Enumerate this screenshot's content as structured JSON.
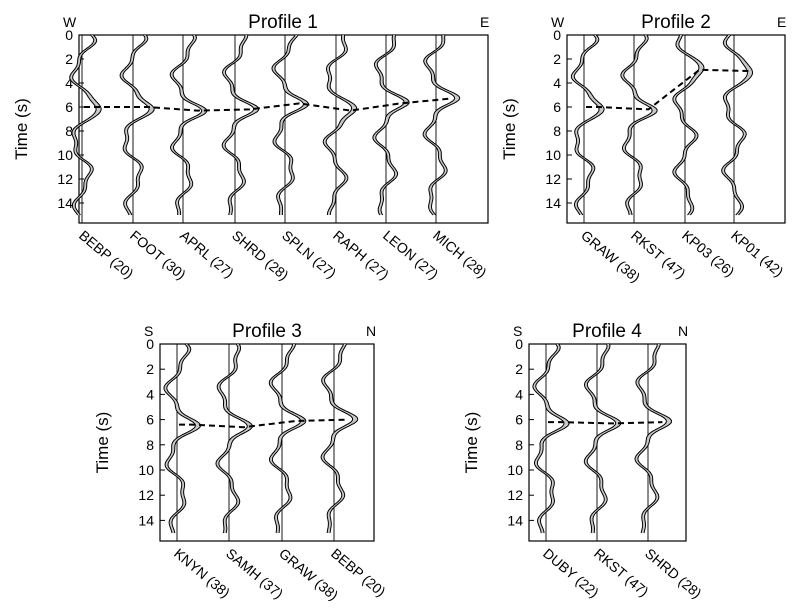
{
  "chart_data": [
    {
      "type": "line",
      "title": "Profile 1",
      "left_label": "W",
      "right_label": "E",
      "ylabel": "Time (s)",
      "ylim": [
        0,
        15
      ],
      "yticks": [
        "0",
        "2",
        "4",
        "6",
        "8",
        "10",
        "12",
        "14"
      ],
      "stations": [
        "BEBP (20)",
        "FOOT (30)",
        "APRL (27)",
        "SHRD (28)",
        "SPLN (27)",
        "RAPH (27)",
        "LEON (27)",
        "MICH (28)"
      ],
      "arrival_times": [
        6.0,
        6.0,
        6.3,
        6.2,
        5.7,
        6.3,
        5.7,
        5.3
      ],
      "trace_style": "filled positive peaks, shaded grey",
      "fill_color": "#c8c8c8",
      "dashed_line_color": "#000000"
    },
    {
      "type": "line",
      "title": "Profile 2",
      "left_label": "W",
      "right_label": "E",
      "ylabel": "Time (s)",
      "ylim": [
        0,
        15
      ],
      "yticks": [
        "0",
        "2",
        "4",
        "6",
        "8",
        "10",
        "12",
        "14"
      ],
      "stations": [
        "GRAW (38)",
        "RKST (47)",
        "KP03 (26)",
        "KP01 (42)"
      ],
      "arrival_times": [
        6.0,
        6.2,
        2.9,
        3.0
      ],
      "trace_style": "filled positive peaks, shaded grey",
      "fill_color": "#c8c8c8",
      "dashed_line_color": "#000000"
    },
    {
      "type": "line",
      "title": "Profile 3",
      "left_label": "S",
      "right_label": "N",
      "ylabel": "Time (s)",
      "ylim": [
        0,
        15
      ],
      "yticks": [
        "0",
        "2",
        "4",
        "6",
        "8",
        "10",
        "12",
        "14"
      ],
      "stations": [
        "KNYN (38)",
        "SAMH (37)",
        "GRAW (38)",
        "BEBP (20)"
      ],
      "arrival_times": [
        6.4,
        6.6,
        6.1,
        6.0
      ],
      "trace_style": "filled positive peaks, shaded grey",
      "fill_color": "#c8c8c8",
      "dashed_line_color": "#000000"
    },
    {
      "type": "line",
      "title": "Profile 4",
      "left_label": "S",
      "right_label": "N",
      "ylabel": "Time (s)",
      "ylim": [
        0,
        15
      ],
      "yticks": [
        "0",
        "2",
        "4",
        "6",
        "8",
        "10",
        "12",
        "14"
      ],
      "stations": [
        "DUBY (22)",
        "RKST (47)",
        "SHRD (28)"
      ],
      "arrival_times": [
        6.2,
        6.3,
        6.2
      ],
      "trace_style": "filled positive peaks, shaded grey",
      "fill_color": "#c8c8c8",
      "dashed_line_color": "#000000"
    }
  ]
}
